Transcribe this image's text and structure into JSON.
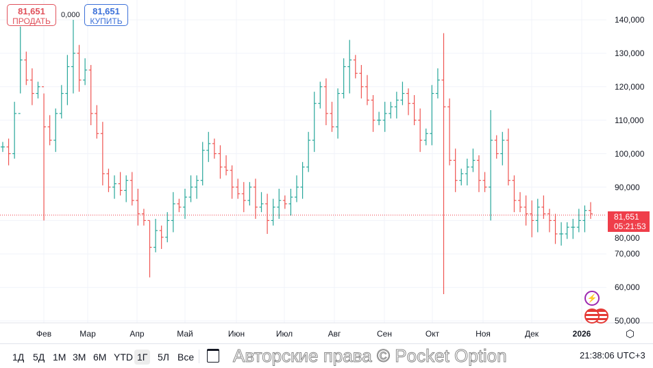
{
  "header": {
    "sell_price": "81,651",
    "sell_label": "ПРОДАТЬ",
    "buy_price": "81,651",
    "buy_label": "КУПИТЬ",
    "spread": "0,000"
  },
  "price_tag": {
    "price": "81,651",
    "countdown": "05:21:53"
  },
  "colors": {
    "up": "#26a69a",
    "down": "#ef5350",
    "last_price_line": "#ef3e4a"
  },
  "ranges": [
    "1Д",
    "5Д",
    "1М",
    "3М",
    "6М",
    "YTD",
    "1Г",
    "5Л",
    "Все"
  ],
  "selected_range": "1Г",
  "footer": {
    "watermark": "Авторские права © Pocket Option",
    "clock": "21:38:06 UTC+3"
  },
  "chart_data": {
    "type": "ohlc",
    "title": "",
    "y_ticks": [
      "140,000",
      "130,000",
      "120,000",
      "110,000",
      "100,000",
      "90,000",
      "80,000",
      "70,000",
      "60,000",
      "50,000"
    ],
    "ylim": [
      50000,
      140000
    ],
    "x_ticks": [
      "Фев",
      "Мар",
      "Апр",
      "Май",
      "Июн",
      "Июл",
      "Авг",
      "Сен",
      "Окт",
      "Ноя",
      "Дек",
      "2026"
    ],
    "last_price": 81651,
    "closes_k": [
      102,
      100,
      112,
      128,
      122,
      118,
      120,
      108,
      104,
      112,
      118,
      126,
      130,
      122,
      125,
      112,
      106,
      94,
      90,
      91,
      89,
      92,
      86,
      82,
      80,
      72,
      77,
      75,
      80,
      85,
      84,
      87,
      90,
      92,
      101,
      103,
      100,
      96,
      95,
      90,
      88,
      86,
      90,
      84,
      85,
      80,
      84,
      86,
      85,
      87,
      90,
      96,
      104,
      115,
      120,
      112,
      108,
      118,
      126,
      128,
      124,
      120,
      116,
      110,
      110,
      112,
      114,
      116,
      118,
      115,
      110,
      104,
      106,
      118,
      122,
      114,
      98,
      92,
      94,
      96,
      98,
      92,
      90,
      104,
      100,
      104,
      92,
      86,
      84,
      82,
      80,
      84,
      82,
      80,
      76,
      76,
      78,
      78,
      80,
      83,
      82
    ],
    "wicks_k": [
      {
        "i": 3,
        "high": 138,
        "low": 118
      },
      {
        "i": 7,
        "low": 80,
        "high": 118
      },
      {
        "i": 12,
        "high": 140,
        "low": 118
      },
      {
        "i": 25,
        "low": 63,
        "high": 80
      },
      {
        "i": 45,
        "low": 76,
        "high": 88
      },
      {
        "i": 59,
        "high": 134,
        "low": 118
      },
      {
        "i": 75,
        "high": 136,
        "low": 58
      },
      {
        "i": 83,
        "high": 113,
        "low": 80
      },
      {
        "i": 90,
        "low": 75,
        "high": 86
      },
      {
        "i": 94,
        "low": 73,
        "high": 82
      }
    ]
  }
}
